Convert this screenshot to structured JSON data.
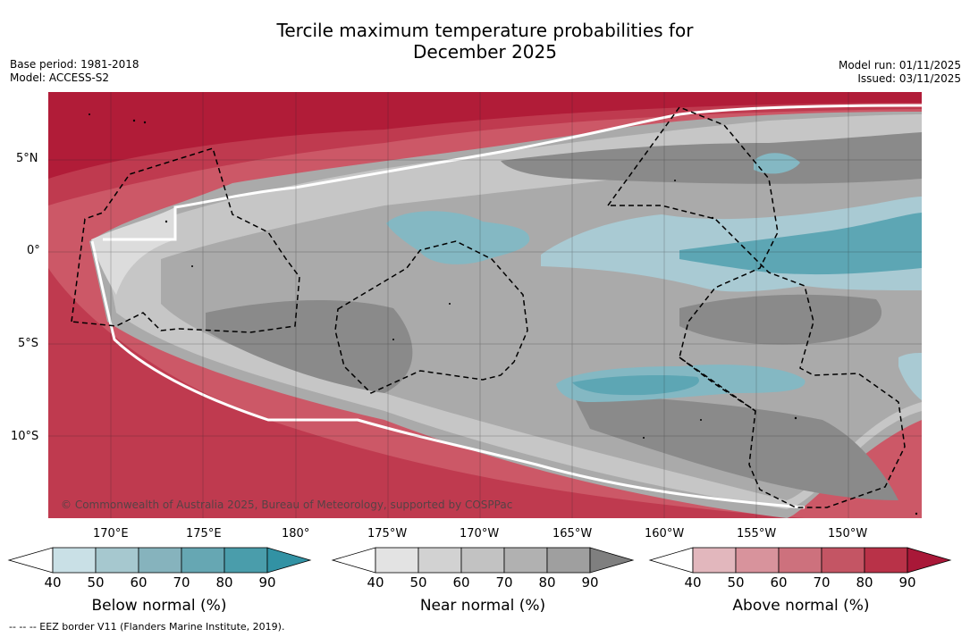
{
  "title": {
    "line1": "Tercile maximum temperature probabilities for",
    "line2": "December 2025"
  },
  "meta_left": {
    "base_period": "Base period: 1981-2018",
    "model": "Model: ACCESS-S2"
  },
  "meta_right": {
    "model_run": "Model run: 01/11/2025",
    "issued": "Issued: 03/11/2025"
  },
  "map": {
    "lat_labels": [
      "5°N",
      "0°",
      "5°S",
      "10°S"
    ],
    "lon_labels": [
      "170°E",
      "175°E",
      "180°",
      "175°W",
      "170°W",
      "165°W",
      "160°W",
      "155°W",
      "150°W"
    ],
    "copyright": "© Commonwealth of Australia 2025, Bureau of Meteorology, supported by COSPPac",
    "colors": {
      "above_90": "#b11c38",
      "above_80": "#bf3a4f",
      "above_70": "#cc5867",
      "above_60": "#d57e89",
      "above_50": "#e0abb2",
      "near_40": "#dcdcdc",
      "near_50": "#c6c6c6",
      "near_60": "#aaaaaa",
      "near_70": "#8a8a8a",
      "below_50": "#a9cad3",
      "below_60": "#84b8c3",
      "below_70": "#5da6b4",
      "below_80": "#3e9aab"
    }
  },
  "colorbars": [
    {
      "name": "below",
      "label": "Below normal (%)",
      "ticks": [
        "40",
        "50",
        "60",
        "70",
        "80",
        "90"
      ],
      "colors": [
        "#c9e0e6",
        "#a6c8cf",
        "#86b3bd",
        "#66a7b3",
        "#4a9dab",
        "#3292a4"
      ]
    },
    {
      "name": "near",
      "label": "Near normal (%)",
      "ticks": [
        "40",
        "50",
        "60",
        "70",
        "80",
        "90"
      ],
      "colors": [
        "#e3e3e3",
        "#d2d2d2",
        "#c2c2c2",
        "#b1b1b1",
        "#9f9f9f",
        "#7f7f7f"
      ]
    },
    {
      "name": "above",
      "label": "Above normal (%)",
      "ticks": [
        "40",
        "50",
        "60",
        "70",
        "80",
        "90"
      ],
      "colors": [
        "#e2b7bd",
        "#d8939c",
        "#cd717d",
        "#c45564",
        "#b93248",
        "#a91838"
      ]
    }
  ],
  "footer": "--  --  -- EEZ border V11 (Flanders Marine Institute, 2019)."
}
